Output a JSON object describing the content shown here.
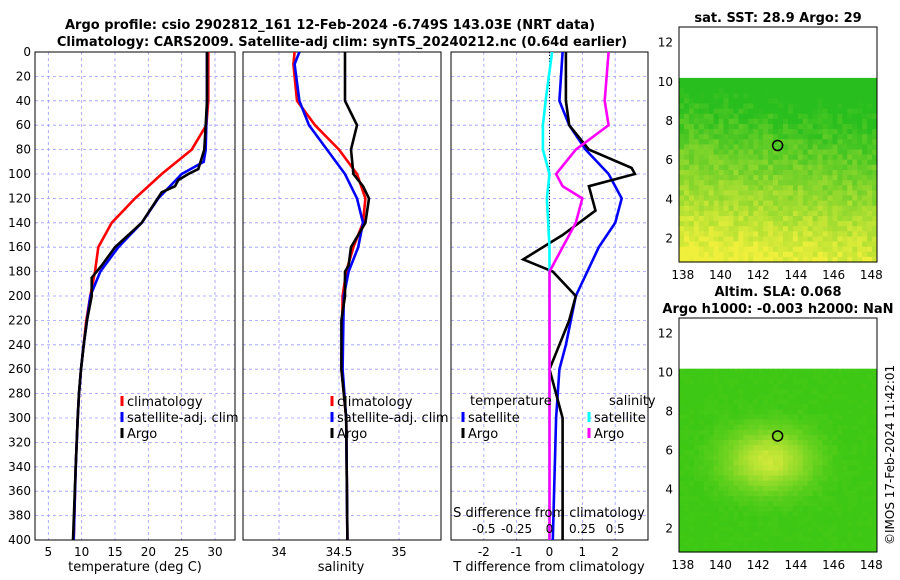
{
  "title_line1": "Argo profile: csio 2902812_161 12-Feb-2024 -6.749S 143.03E (NRT data)",
  "title_line2": "Climatology: CARS2009. Satellite-adj clim: synTS_20240212.nc (0.64d earlier)",
  "watermark": "©IMOS 17-Feb-2024 11:42:01",
  "colors": {
    "climatology": "#ff0000",
    "satellite": "#0000ff",
    "argo": "#000000",
    "salinity_diff": "#00ffff",
    "argo_salinity_diff": "#ff00ff"
  },
  "chart_data": [
    {
      "type": "line",
      "name": "temperature",
      "xlabel": "temperature (deg C)",
      "ylabel": "",
      "xlim": [
        3,
        33
      ],
      "ylim": [
        400,
        0
      ],
      "xticks": [
        5,
        10,
        15,
        20,
        25,
        30
      ],
      "yticks": [
        0,
        20,
        40,
        60,
        80,
        100,
        120,
        140,
        160,
        180,
        200,
        220,
        240,
        260,
        280,
        300,
        320,
        340,
        360,
        380,
        400
      ],
      "grid": true,
      "legend": [
        "climatology",
        "satellite-adj. clim",
        "Argo"
      ],
      "series": [
        {
          "name": "climatology",
          "color": "#ff0000",
          "depth": [
            0,
            40,
            60,
            80,
            100,
            120,
            140,
            160,
            180,
            200,
            220,
            240,
            260,
            280,
            300,
            340,
            400
          ],
          "values": [
            29,
            29,
            28.7,
            26.5,
            22,
            18,
            14.5,
            12.5,
            12,
            11.3,
            10.7,
            10.3,
            9.9,
            9.6,
            9.4,
            9.1,
            8.8
          ]
        },
        {
          "name": "satellite-adj. clim",
          "color": "#0000ff",
          "depth": [
            0,
            40,
            60,
            80,
            90,
            100,
            120,
            140,
            160,
            180,
            200,
            220,
            240,
            260,
            280,
            300,
            340,
            400
          ],
          "values": [
            28.8,
            28.8,
            28.7,
            28.6,
            28.3,
            25,
            21.5,
            19,
            15.5,
            12.8,
            11.3,
            10.8,
            10.3,
            9.9,
            9.6,
            9.4,
            9.1,
            8.8
          ]
        },
        {
          "name": "Argo",
          "color": "#000000",
          "depth": [
            0,
            40,
            60,
            80,
            96,
            100,
            105,
            110,
            115,
            140,
            160,
            175,
            185,
            200,
            220,
            240,
            260,
            280,
            300,
            340,
            400
          ],
          "values": [
            28.8,
            28.8,
            28.6,
            28.4,
            27.5,
            26,
            24.5,
            24,
            22,
            19,
            15,
            13,
            11.5,
            11.5,
            10.8,
            10.3,
            9.9,
            9.6,
            9.4,
            9.1,
            8.7
          ]
        }
      ]
    },
    {
      "type": "line",
      "name": "salinity",
      "xlabel": "salinity",
      "ylabel": "",
      "xlim": [
        33.7,
        35.35
      ],
      "ylim": [
        400,
        0
      ],
      "xticks": [
        34,
        34.5,
        35
      ],
      "grid": true,
      "legend": [
        "climatology",
        "satellite-adj. clim",
        "Argo"
      ],
      "series": [
        {
          "name": "climatology",
          "color": "#ff0000",
          "depth": [
            0,
            10,
            40,
            60,
            80,
            100,
            120,
            140,
            160,
            180,
            200,
            260,
            300,
            400
          ],
          "values": [
            34.13,
            34.12,
            34.15,
            34.3,
            34.5,
            34.65,
            34.72,
            34.7,
            34.62,
            34.56,
            34.53,
            34.52,
            34.56,
            34.57
          ]
        },
        {
          "name": "satellite-adj. clim",
          "color": "#0000ff",
          "depth": [
            0,
            10,
            40,
            60,
            80,
            100,
            120,
            140,
            160,
            180,
            200,
            260,
            300,
            400
          ],
          "values": [
            34.17,
            34.13,
            34.17,
            34.25,
            34.4,
            34.55,
            34.65,
            34.7,
            34.66,
            34.58,
            34.54,
            34.53,
            34.56,
            34.57
          ]
        },
        {
          "name": "Argo",
          "color": "#000000",
          "depth": [
            0,
            40,
            50,
            60,
            80,
            100,
            110,
            120,
            140,
            160,
            175,
            180,
            200,
            220,
            260,
            300,
            400
          ],
          "values": [
            34.55,
            34.55,
            34.6,
            34.65,
            34.6,
            34.62,
            34.7,
            34.75,
            34.72,
            34.6,
            34.58,
            34.55,
            34.55,
            34.52,
            34.52,
            34.56,
            34.57
          ]
        }
      ]
    },
    {
      "type": "line",
      "name": "differences",
      "xlabel": "T difference from climatology",
      "top_xlabel": "S difference from climatology",
      "xlim": [
        -3,
        3
      ],
      "s_xlim": [
        -0.75,
        0.75
      ],
      "ylim": [
        400,
        0
      ],
      "xticks": [
        -2,
        -1,
        0,
        1,
        2
      ],
      "top_xticks": [
        "-0.5",
        "-0.25",
        "0",
        "0.25",
        "0.5"
      ],
      "top_xtick_values": [
        -0.5,
        -0.25,
        0,
        0.25,
        0.5
      ],
      "grid": true,
      "legend_temperature_title": "temperature",
      "legend_salinity_title": "salinity",
      "legend_temperature": [
        "satellite",
        "Argo"
      ],
      "legend_salinity": [
        "satellite",
        "Argo"
      ],
      "series": [
        {
          "name": "temperature satellite",
          "color": "#0000ff",
          "depth": [
            0,
            40,
            60,
            80,
            100,
            120,
            140,
            160,
            200,
            240,
            260,
            300,
            400
          ],
          "values": [
            0.4,
            0.3,
            0.6,
            1.1,
            1.8,
            2.2,
            2.0,
            1.5,
            0.8,
            0.5,
            0.3,
            0.2,
            0.1
          ]
        },
        {
          "name": "temperature Argo",
          "color": "#000000",
          "depth": [
            0,
            40,
            60,
            80,
            95,
            100,
            110,
            130,
            150,
            170,
            180,
            200,
            220,
            240,
            260,
            300,
            400
          ],
          "values": [
            0.5,
            0.5,
            0.6,
            1.2,
            2.5,
            2.6,
            1.2,
            1.4,
            0.4,
            -0.8,
            0.1,
            0.8,
            0.6,
            0.3,
            0.0,
            0.4,
            0.4
          ]
        },
        {
          "name": "salinity satellite",
          "color": "#00ffff",
          "depth": [
            0,
            40,
            60,
            80,
            100,
            120,
            140,
            160,
            200,
            260,
            300,
            400
          ],
          "values": [
            0.02,
            -0.03,
            -0.05,
            -0.05,
            0.0,
            -0.02,
            -0.01,
            0.0,
            0.0,
            0.0,
            0.0,
            0.0
          ]
        },
        {
          "name": "salinity Argo",
          "color": "#ff00ff",
          "depth": [
            0,
            40,
            60,
            80,
            100,
            110,
            120,
            140,
            160,
            180,
            200,
            260,
            300,
            400
          ],
          "values": [
            0.45,
            0.42,
            0.45,
            0.2,
            0.05,
            0.1,
            0.25,
            0.2,
            0.1,
            0.0,
            0.0,
            0.0,
            0.0,
            0.0
          ]
        }
      ]
    },
    {
      "type": "heatmap",
      "name": "sat_sst_map",
      "title": "sat. SST: 28.9 Argo: 29",
      "xticks": [
        138,
        140,
        142,
        144,
        146,
        148
      ],
      "yticks": [
        2,
        4,
        6,
        8,
        10,
        12
      ],
      "xlim": [
        137.8,
        148.3
      ],
      "ylim": [
        0.8,
        12.8
      ],
      "data_ylim": [
        0.8,
        10.2
      ],
      "argo_position": [
        143.03,
        6.749
      ]
    },
    {
      "type": "heatmap",
      "name": "altimetry_map",
      "title_line1": "Altim. SLA: 0.068",
      "title_line2": "Argo h1000: -0.003 h2000: NaN",
      "xticks": [
        138,
        140,
        142,
        144,
        146,
        148
      ],
      "yticks": [
        2,
        4,
        6,
        8,
        10,
        12
      ],
      "xlim": [
        137.8,
        148.3
      ],
      "ylim": [
        0.8,
        12.8
      ],
      "data_ylim": [
        0.8,
        10.2
      ],
      "argo_position": [
        143.03,
        6.749
      ]
    }
  ]
}
